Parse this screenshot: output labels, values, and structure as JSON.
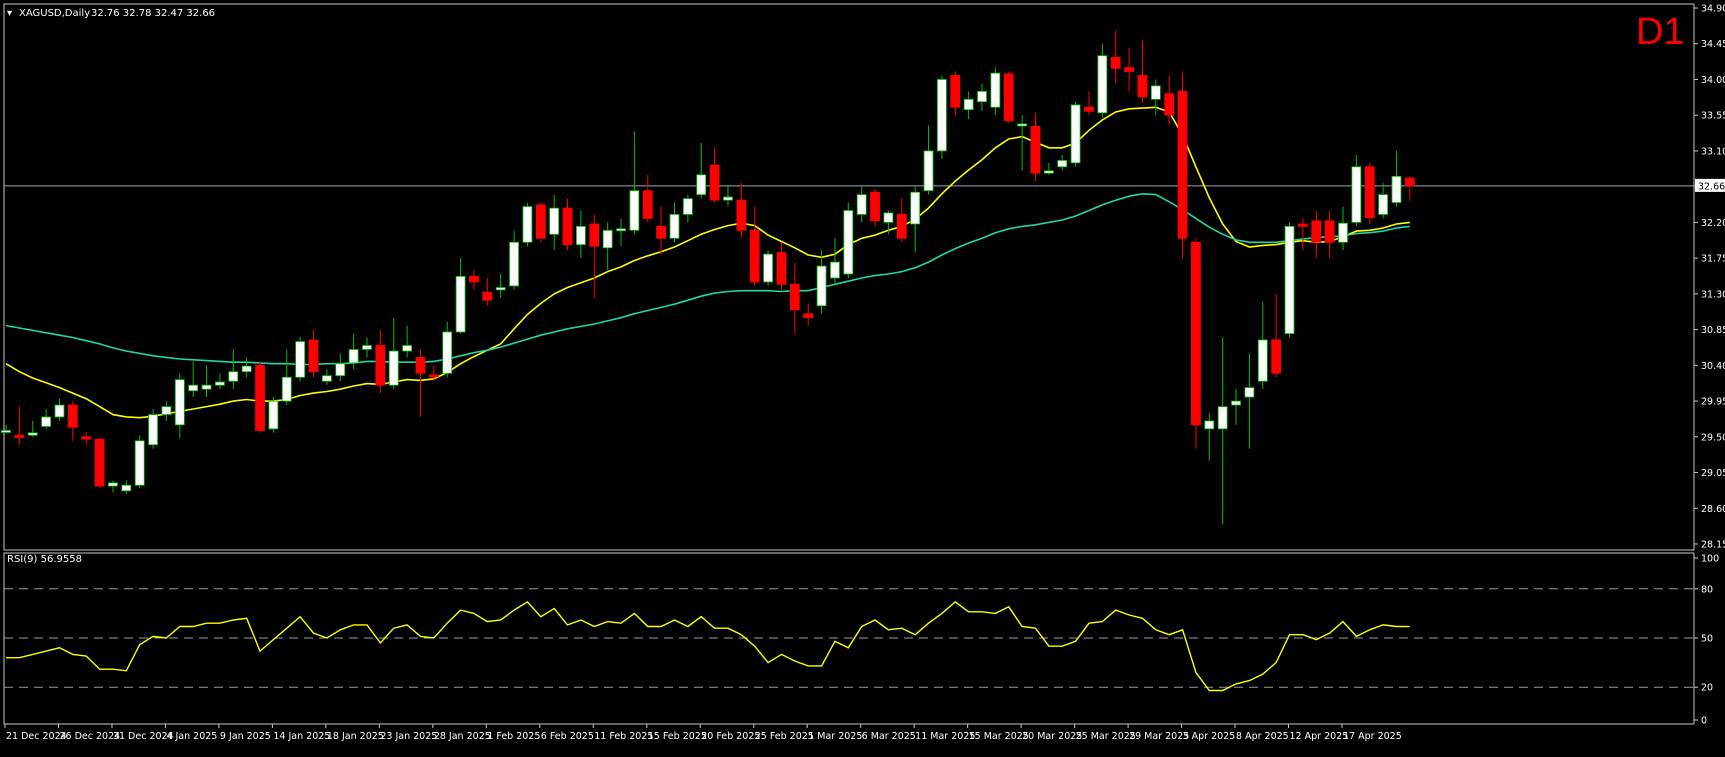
{
  "header": {
    "symbol": "XAGUSD,Daily",
    "ohlc": "32.76 32.78 32.47 32.66",
    "timeframe": "D1"
  },
  "rsi_header": {
    "label": "RSI(9) 56.9558"
  },
  "price_tag": "32.66",
  "colors": {
    "background": "#000000",
    "bull_candle": "#ffffff",
    "bear_candle": "#ff0000",
    "bull_wick": "#00c000",
    "bear_wick": "#ff0000",
    "ma_fast": "#ffff00",
    "ma_slow": "#20d8a8",
    "rsi_line": "#ffff00",
    "timeframe_label": "#ff0000"
  },
  "chart_data": [
    {
      "type": "candlestick",
      "title": "XAGUSD,Daily",
      "ylim": [
        28.15,
        34.9
      ],
      "y_ticks": [
        "34.90",
        "34.45",
        "34.00",
        "33.55",
        "33.10",
        "32.66",
        "32.20",
        "31.75",
        "31.30",
        "30.85",
        "30.40",
        "29.95",
        "29.50",
        "29.05",
        "28.60",
        "28.15"
      ],
      "x_ticks": [
        {
          "index": 0,
          "label": "21 Dec 2024"
        },
        {
          "index": 4,
          "label": "26 Dec 2024"
        },
        {
          "index": 8,
          "label": "31 Dec 2024"
        },
        {
          "index": 12,
          "label": "4 Jan 2025"
        },
        {
          "index": 16,
          "label": "9 Jan 2025"
        },
        {
          "index": 20,
          "label": "14 Jan 2025"
        },
        {
          "index": 24,
          "label": "18 Jan 2025"
        },
        {
          "index": 28,
          "label": "23 Jan 2025"
        },
        {
          "index": 32,
          "label": "28 Jan 2025"
        },
        {
          "index": 36,
          "label": "1 Feb 2025"
        },
        {
          "index": 40,
          "label": "6 Feb 2025"
        },
        {
          "index": 44,
          "label": "11 Feb 2025"
        },
        {
          "index": 48,
          "label": "15 Feb 2025"
        },
        {
          "index": 52,
          "label": "20 Feb 2025"
        },
        {
          "index": 56,
          "label": "25 Feb 2025"
        },
        {
          "index": 60,
          "label": "1 Mar 2025"
        },
        {
          "index": 64,
          "label": "6 Mar 2025"
        },
        {
          "index": 68,
          "label": "11 Mar 2025"
        },
        {
          "index": 72,
          "label": "15 Mar 2025"
        },
        {
          "index": 76,
          "label": "20 Mar 2025"
        },
        {
          "index": 80,
          "label": "25 Mar 2025"
        },
        {
          "index": 84,
          "label": "29 Mar 2025"
        },
        {
          "index": 88,
          "label": "3 Apr 2025"
        },
        {
          "index": 92,
          "label": "8 Apr 2025"
        },
        {
          "index": 96,
          "label": "12 Apr 2025"
        },
        {
          "index": 100,
          "label": "17 Apr 2025"
        }
      ],
      "last_price": 32.66,
      "candles": [
        [
          29.58,
          29.58,
          29.65,
          29.54
        ],
        [
          29.52,
          29.49,
          29.88,
          29.4
        ],
        [
          29.52,
          29.55,
          29.7,
          29.5
        ],
        [
          29.63,
          29.75,
          29.85,
          29.6
        ],
        [
          29.75,
          29.9,
          29.98,
          29.7
        ],
        [
          29.9,
          29.62,
          29.95,
          29.45
        ],
        [
          29.5,
          29.47,
          29.56,
          29.4
        ],
        [
          29.47,
          28.88,
          29.48,
          28.86
        ],
        [
          28.88,
          28.92,
          28.95,
          28.8
        ],
        [
          28.82,
          28.89,
          28.95,
          28.78
        ],
        [
          28.89,
          29.45,
          29.52,
          28.85
        ],
        [
          29.4,
          29.78,
          29.85,
          29.35
        ],
        [
          29.78,
          29.88,
          29.95,
          29.7
        ],
        [
          29.65,
          30.22,
          30.3,
          29.48
        ],
        [
          30.08,
          30.15,
          30.45,
          30.0
        ],
        [
          30.1,
          30.15,
          30.4,
          30.0
        ],
        [
          30.15,
          30.19,
          30.3,
          30.1
        ],
        [
          30.2,
          30.32,
          30.6,
          30.1
        ],
        [
          30.32,
          30.39,
          30.5,
          30.25
        ],
        [
          30.4,
          29.58,
          30.45,
          29.55
        ],
        [
          29.6,
          29.95,
          30.0,
          29.55
        ],
        [
          29.95,
          30.25,
          30.6,
          29.9
        ],
        [
          30.25,
          30.7,
          30.76,
          30.2
        ],
        [
          30.72,
          30.32,
          30.85,
          30.25
        ],
        [
          30.2,
          30.27,
          30.35,
          30.15
        ],
        [
          30.27,
          30.42,
          30.55,
          30.2
        ],
        [
          30.43,
          30.6,
          30.8,
          30.35
        ],
        [
          30.6,
          30.65,
          30.75,
          30.5
        ],
        [
          30.65,
          30.15,
          30.85,
          30.05
        ],
        [
          30.15,
          30.58,
          31.0,
          30.1
        ],
        [
          30.58,
          30.65,
          30.9,
          30.5
        ],
        [
          30.5,
          30.3,
          30.6,
          29.75
        ],
        [
          30.28,
          30.27,
          30.4,
          30.2
        ],
        [
          30.3,
          30.82,
          30.95,
          30.25
        ],
        [
          30.82,
          31.52,
          31.75,
          30.8
        ],
        [
          31.52,
          31.45,
          31.6,
          31.35
        ],
        [
          31.32,
          31.22,
          31.5,
          31.15
        ],
        [
          31.35,
          31.38,
          31.55,
          31.25
        ],
        [
          31.4,
          31.95,
          32.1,
          31.35
        ],
        [
          31.95,
          32.4,
          32.45,
          31.9
        ],
        [
          32.42,
          32.0,
          32.45,
          31.95
        ],
        [
          32.05,
          32.38,
          32.55,
          31.85
        ],
        [
          32.38,
          31.92,
          32.5,
          31.85
        ],
        [
          31.92,
          32.15,
          32.35,
          31.75
        ],
        [
          32.18,
          31.9,
          32.3,
          31.25
        ],
        [
          31.88,
          32.1,
          32.2,
          31.6
        ],
        [
          32.1,
          32.12,
          32.25,
          31.9
        ],
        [
          32.1,
          32.6,
          33.35,
          32.05
        ],
        [
          32.6,
          32.25,
          32.8,
          32.2
        ],
        [
          32.15,
          32.0,
          32.4,
          31.8
        ],
        [
          32.0,
          32.3,
          32.45,
          31.95
        ],
        [
          32.3,
          32.5,
          32.55,
          32.2
        ],
        [
          32.55,
          32.8,
          33.2,
          32.5
        ],
        [
          32.92,
          32.48,
          33.15,
          32.45
        ],
        [
          32.48,
          32.52,
          32.65,
          32.4
        ],
        [
          32.48,
          32.1,
          32.7,
          32.0
        ],
        [
          32.1,
          31.45,
          32.4,
          31.4
        ],
        [
          31.45,
          31.8,
          31.85,
          31.4
        ],
        [
          31.82,
          31.42,
          31.95,
          31.35
        ],
        [
          31.42,
          31.1,
          31.7,
          30.8
        ],
        [
          31.05,
          31.0,
          31.18,
          30.9
        ],
        [
          31.15,
          31.65,
          31.85,
          31.05
        ],
        [
          31.5,
          31.7,
          32.0,
          31.42
        ],
        [
          31.55,
          32.35,
          32.45,
          31.5
        ],
        [
          32.3,
          32.55,
          32.65,
          32.2
        ],
        [
          32.58,
          32.22,
          32.62,
          32.15
        ],
        [
          32.2,
          32.32,
          32.35,
          32.05
        ],
        [
          32.3,
          32.0,
          32.5,
          31.95
        ],
        [
          32.18,
          32.58,
          32.65,
          31.82
        ],
        [
          32.6,
          33.1,
          33.42,
          32.55
        ],
        [
          33.1,
          34.0,
          34.05,
          33.0
        ],
        [
          34.05,
          33.65,
          34.1,
          33.55
        ],
        [
          33.62,
          33.75,
          33.85,
          33.5
        ],
        [
          33.72,
          33.85,
          33.95,
          33.6
        ],
        [
          33.65,
          34.08,
          34.15,
          33.55
        ],
        [
          34.07,
          33.48,
          34.1,
          33.45
        ],
        [
          33.42,
          33.44,
          33.55,
          32.85
        ],
        [
          33.41,
          32.82,
          33.58,
          32.72
        ],
        [
          32.82,
          32.85,
          32.95,
          32.8
        ],
        [
          32.9,
          32.98,
          33.05,
          32.85
        ],
        [
          32.95,
          33.68,
          33.72,
          32.9
        ],
        [
          33.65,
          33.6,
          33.85,
          33.55
        ],
        [
          33.58,
          34.3,
          34.45,
          33.52
        ],
        [
          34.28,
          34.14,
          34.62,
          33.95
        ],
        [
          34.15,
          34.1,
          34.4,
          33.85
        ],
        [
          34.05,
          33.78,
          34.5,
          33.7
        ],
        [
          33.75,
          33.92,
          34.0,
          33.55
        ],
        [
          33.82,
          33.55,
          34.05,
          33.42
        ],
        [
          33.85,
          32.0,
          34.1,
          31.75
        ],
        [
          31.95,
          29.65,
          32.0,
          29.35
        ],
        [
          29.6,
          29.7,
          29.8,
          29.2
        ],
        [
          29.6,
          29.88,
          30.75,
          28.4
        ],
        [
          29.9,
          29.95,
          30.1,
          29.65
        ],
        [
          30.0,
          30.12,
          30.55,
          29.35
        ],
        [
          30.2,
          30.72,
          31.2,
          30.1
        ],
        [
          30.72,
          30.3,
          31.3,
          30.25
        ],
        [
          30.8,
          32.15,
          32.2,
          30.75
        ],
        [
          32.18,
          32.15,
          32.25,
          31.85
        ],
        [
          32.22,
          31.95,
          32.35,
          31.75
        ],
        [
          32.22,
          31.95,
          32.35,
          31.75
        ],
        [
          31.95,
          32.19,
          32.4,
          31.85
        ],
        [
          32.2,
          32.9,
          33.05,
          32.15
        ],
        [
          32.9,
          32.26,
          32.95,
          32.18
        ],
        [
          32.3,
          32.55,
          32.7,
          32.25
        ],
        [
          32.45,
          32.78,
          33.1,
          32.4
        ],
        [
          32.76,
          32.66,
          32.78,
          32.47
        ]
      ],
      "series": [
        {
          "name": "",
          "type": "line",
          "color": "#ffff00",
          "values": [
            30.42,
            30.32,
            30.24,
            30.18,
            30.12,
            30.05,
            29.98,
            29.88,
            29.78,
            29.75,
            29.74,
            29.76,
            29.79,
            29.82,
            29.85,
            29.88,
            29.91,
            29.95,
            29.97,
            29.95,
            29.95,
            29.97,
            30.02,
            30.05,
            30.07,
            30.1,
            30.14,
            30.17,
            30.16,
            30.19,
            30.22,
            30.21,
            30.23,
            30.31,
            30.42,
            30.51,
            30.59,
            30.67,
            30.86,
            31.04,
            31.18,
            31.3,
            31.38,
            31.44,
            31.5,
            31.58,
            31.64,
            31.72,
            31.78,
            31.83,
            31.89,
            31.97,
            32.05,
            32.11,
            32.16,
            32.19,
            32.16,
            32.04,
            31.96,
            31.88,
            31.79,
            31.76,
            31.8,
            31.92,
            32.0,
            32.04,
            32.1,
            32.15,
            32.24,
            32.38,
            32.56,
            32.72,
            32.86,
            32.99,
            33.14,
            33.25,
            33.28,
            33.21,
            33.14,
            33.14,
            33.2,
            33.36,
            33.49,
            33.59,
            33.63,
            33.64,
            33.65,
            33.59,
            33.3,
            32.9,
            32.51,
            32.18,
            31.96,
            31.89,
            31.91,
            31.92,
            31.95,
            31.97,
            31.95,
            31.96,
            32.02,
            32.09,
            32.1,
            32.13,
            32.18,
            32.2
          ]
        },
        {
          "name": "",
          "type": "line",
          "color": "#20d8a8",
          "values": [
            30.9,
            30.87,
            30.84,
            30.81,
            30.78,
            30.75,
            30.71,
            30.67,
            30.62,
            30.58,
            30.55,
            30.52,
            30.5,
            30.48,
            30.47,
            30.46,
            30.45,
            30.44,
            30.44,
            30.43,
            30.42,
            30.42,
            30.41,
            30.41,
            30.42,
            30.42,
            30.43,
            30.45,
            30.45,
            30.44,
            30.44,
            30.44,
            30.45,
            30.48,
            30.52,
            30.56,
            30.59,
            30.63,
            30.68,
            30.73,
            30.78,
            30.82,
            30.86,
            30.89,
            30.92,
            30.96,
            31.0,
            31.05,
            31.09,
            31.13,
            31.17,
            31.22,
            31.27,
            31.31,
            31.33,
            31.34,
            31.34,
            31.34,
            31.33,
            31.34,
            31.34,
            31.38,
            31.42,
            31.46,
            31.5,
            31.53,
            31.55,
            31.58,
            31.63,
            31.7,
            31.79,
            31.87,
            31.94,
            32.0,
            32.07,
            32.12,
            32.15,
            32.17,
            32.2,
            32.23,
            32.28,
            32.35,
            32.42,
            32.48,
            32.53,
            32.56,
            32.55,
            32.46,
            32.36,
            32.25,
            32.14,
            32.05,
            31.98,
            31.95,
            31.95,
            31.95,
            31.97,
            31.99,
            32.01,
            32.02,
            32.03,
            32.06,
            32.07,
            32.09,
            32.13,
            32.15
          ]
        }
      ]
    },
    {
      "type": "line",
      "title": "RSI(9) 56.9558",
      "ylim": [
        0,
        100
      ],
      "y_ticks": [
        "100",
        "80",
        "50",
        "20",
        "0"
      ],
      "levels": [
        80,
        50,
        20
      ],
      "series": [
        {
          "name": "",
          "color": "#ffff00",
          "values": [
            38,
            38,
            40,
            42,
            44,
            40,
            39,
            31,
            31,
            30,
            46,
            51,
            50,
            57,
            57,
            59,
            59,
            61,
            62,
            42,
            49,
            56,
            63,
            53,
            50,
            55,
            58,
            58,
            47,
            56,
            58,
            51,
            50,
            59,
            67,
            65,
            60,
            61,
            67,
            72,
            63,
            68,
            58,
            61,
            57,
            60,
            59,
            65,
            57,
            57,
            61,
            57,
            63,
            56,
            56,
            52,
            45,
            35,
            40,
            36,
            33,
            33,
            48,
            44,
            57,
            61,
            55,
            56,
            52,
            59,
            65,
            72,
            66,
            66,
            65,
            69,
            57,
            56,
            45,
            45,
            48,
            59,
            60,
            67,
            64,
            62,
            55,
            52,
            55,
            29,
            18,
            18,
            22,
            24,
            28,
            35,
            52,
            52,
            49,
            53,
            60,
            51,
            55,
            58,
            57,
            56.96
          ]
        }
      ]
    }
  ]
}
